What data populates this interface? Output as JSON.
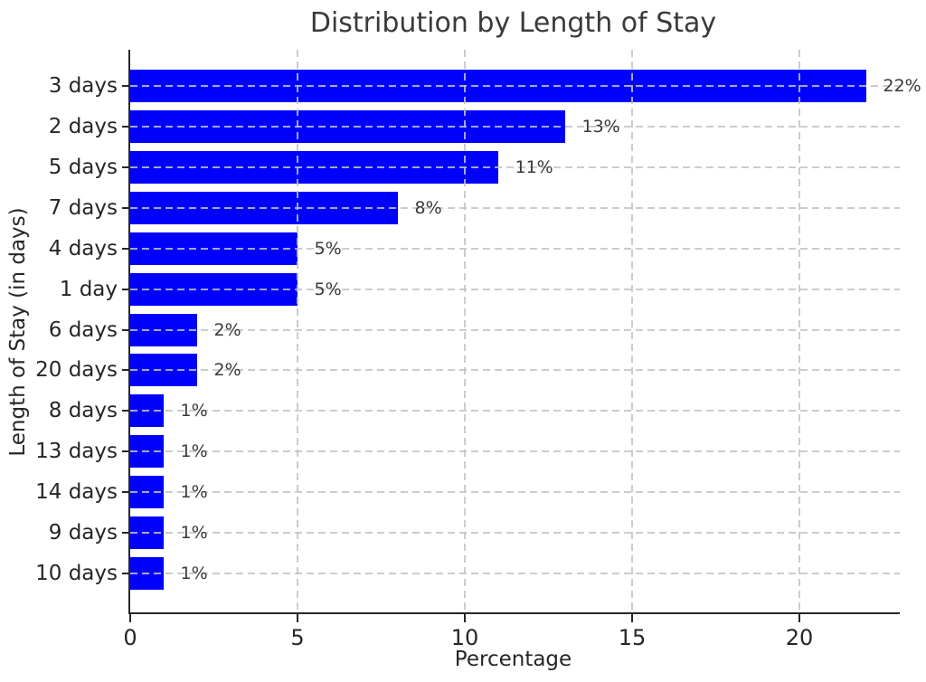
{
  "chart_data": {
    "type": "bar",
    "orientation": "horizontal",
    "title": "Distribution by Length of Stay",
    "xlabel": "Percentage",
    "ylabel": "Length of Stay (in days)",
    "categories": [
      "3 days",
      "2 days",
      "5 days",
      "7 days",
      "4 days",
      "1 day",
      "6 days",
      "20 days",
      "8 days",
      "13 days",
      "14 days",
      "9 days",
      "10 days"
    ],
    "values": [
      22,
      13,
      11,
      8,
      5,
      5,
      2,
      2,
      1,
      1,
      1,
      1,
      1
    ],
    "value_labels": [
      "22%",
      "13%",
      "11%",
      "8%",
      "5%",
      "5%",
      "2%",
      "2%",
      "1%",
      "1%",
      "1%",
      "1%",
      "1%"
    ],
    "x_ticks": [
      0,
      5,
      10,
      15,
      20
    ],
    "xlim": [
      0,
      23
    ],
    "grid": "dashed-both-axes",
    "legend": "none",
    "colors": {
      "bar": "#0000ff",
      "grid": "#c3c3c3",
      "text": "#262626",
      "value_label": "#3a3a3a",
      "title": "#3a3a3a",
      "spine": "#262626",
      "background": "#ffffff"
    }
  }
}
